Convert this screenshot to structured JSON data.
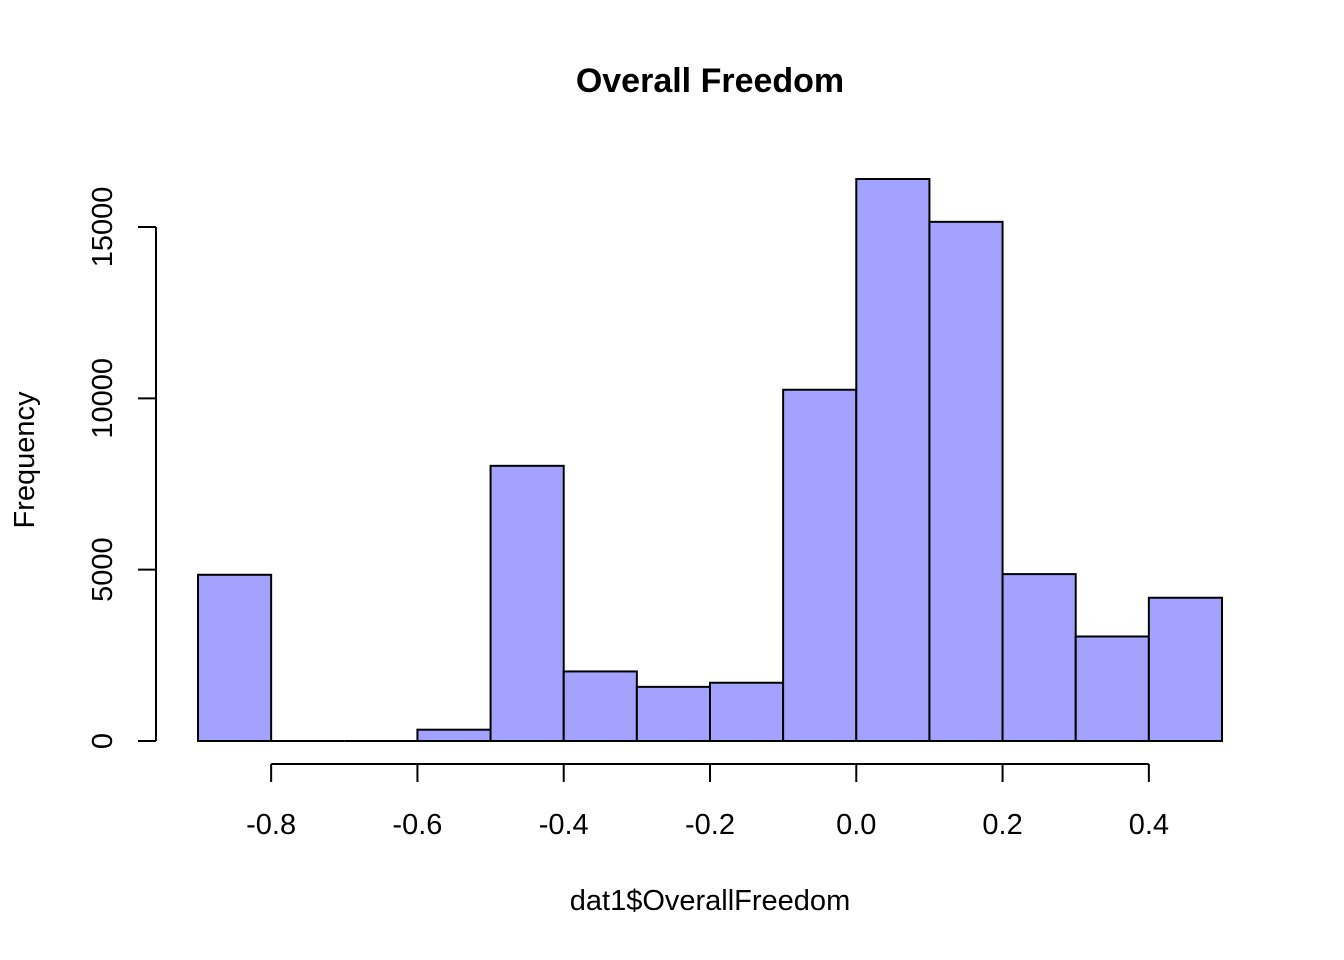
{
  "chart_data": {
    "type": "bar",
    "title": "Overall Freedom",
    "xlabel": "dat1$OverallFreedom",
    "ylabel": "Frequency",
    "bins": [
      {
        "x0": -0.9,
        "x1": -0.8,
        "count": 4850
      },
      {
        "x0": -0.8,
        "x1": -0.7,
        "count": 0
      },
      {
        "x0": -0.7,
        "x1": -0.6,
        "count": 0
      },
      {
        "x0": -0.6,
        "x1": -0.5,
        "count": 330
      },
      {
        "x0": -0.5,
        "x1": -0.4,
        "count": 8030
      },
      {
        "x0": -0.4,
        "x1": -0.3,
        "count": 2030
      },
      {
        "x0": -0.3,
        "x1": -0.2,
        "count": 1580
      },
      {
        "x0": -0.2,
        "x1": -0.1,
        "count": 1700
      },
      {
        "x0": -0.1,
        "x1": 0.0,
        "count": 10250
      },
      {
        "x0": 0.0,
        "x1": 0.1,
        "count": 16400
      },
      {
        "x0": 0.1,
        "x1": 0.2,
        "count": 15150
      },
      {
        "x0": 0.2,
        "x1": 0.3,
        "count": 4870
      },
      {
        "x0": 0.3,
        "x1": 0.4,
        "count": 3050
      },
      {
        "x0": 0.4,
        "x1": 0.5,
        "count": 4180
      }
    ],
    "xlim": [
      -0.9,
      0.5
    ],
    "ylim": [
      0,
      16400
    ],
    "xticks": [
      -0.8,
      -0.6,
      -0.4,
      -0.2,
      0.0,
      0.2,
      0.4
    ],
    "xtick_labels": [
      "-0.8",
      "-0.6",
      "-0.4",
      "-0.2",
      "0.0",
      "0.2",
      "0.4"
    ],
    "yticks": [
      0,
      5000,
      10000,
      15000
    ],
    "ytick_labels": [
      "0",
      "5000",
      "10000",
      "15000"
    ],
    "grid": false,
    "colors": {
      "bar_fill": "#a3a3ff",
      "bar_stroke": "#000000"
    }
  }
}
